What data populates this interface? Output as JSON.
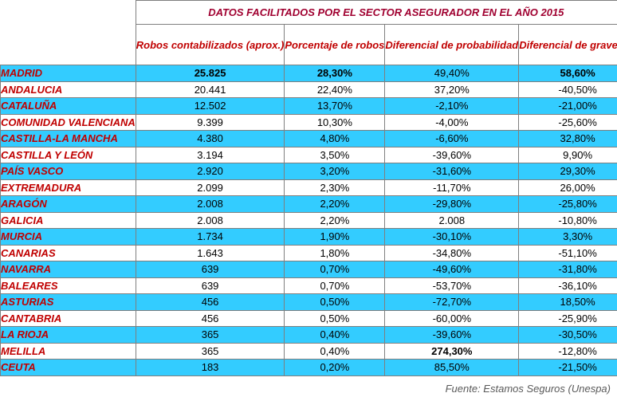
{
  "title": "DATOS FACILITADOS POR EL SECTOR ASEGURADOR EN EL AÑO 2015",
  "headers": {
    "robos": "Robos contabilizados (aprox.)",
    "porcentaje": "Porcentaje de robos",
    "probabilidad": "Diferencial de probabilidad",
    "gravedad": "Diferencial de gravedad"
  },
  "rows": [
    {
      "region": "MADRID",
      "robos": "25.825",
      "porcentaje": "28,30%",
      "probabilidad": "49,40%",
      "gravedad": "58,60%"
    },
    {
      "region": "ANDALUCIA",
      "robos": "20.441",
      "porcentaje": "22,40%",
      "probabilidad": "37,20%",
      "gravedad": "-40,50%"
    },
    {
      "region": "CATALUÑA",
      "robos": "12.502",
      "porcentaje": "13,70%",
      "probabilidad": "-2,10%",
      "gravedad": "-21,00%"
    },
    {
      "region": "COMUNIDAD VALENCIANA",
      "robos": "9.399",
      "porcentaje": "10,30%",
      "probabilidad": "-4,00%",
      "gravedad": "-25,60%"
    },
    {
      "region": "CASTILLA-LA MANCHA",
      "robos": "4.380",
      "porcentaje": "4,80%",
      "probabilidad": "-6,60%",
      "gravedad": "32,80%"
    },
    {
      "region": "CASTILLA Y LEÓN",
      "robos": "3.194",
      "porcentaje": "3,50%",
      "probabilidad": "-39,60%",
      "gravedad": "9,90%"
    },
    {
      "region": "PAÍS VASCO",
      "robos": "2.920",
      "porcentaje": "3,20%",
      "probabilidad": "-31,60%",
      "gravedad": "29,30%"
    },
    {
      "region": "EXTREMADURA",
      "robos": "2.099",
      "porcentaje": "2,30%",
      "probabilidad": "-11,70%",
      "gravedad": "26,00%"
    },
    {
      "region": "ARAGÓN",
      "robos": "2.008",
      "porcentaje": "2,20%",
      "probabilidad": "-29,80%",
      "gravedad": "-25,80%"
    },
    {
      "region": "GALICIA",
      "robos": "2.008",
      "porcentaje": "2,20%",
      "probabilidad": "2.008",
      "gravedad": "-10,80%"
    },
    {
      "region": "MURCIA",
      "robos": "1.734",
      "porcentaje": "1,90%",
      "probabilidad": "-30,10%",
      "gravedad": "3,30%"
    },
    {
      "region": "CANARIAS",
      "robos": "1.643",
      "porcentaje": "1,80%",
      "probabilidad": "-34,80%",
      "gravedad": "-51,10%"
    },
    {
      "region": "NAVARRA",
      "robos": "639",
      "porcentaje": "0,70%",
      "probabilidad": "-49,60%",
      "gravedad": "-31,80%"
    },
    {
      "region": "BALEARES",
      "robos": "639",
      "porcentaje": "0,70%",
      "probabilidad": "-53,70%",
      "gravedad": "-36,10%"
    },
    {
      "region": "ASTURIAS",
      "robos": "456",
      "porcentaje": "0,50%",
      "probabilidad": "-72,70%",
      "gravedad": "18,50%"
    },
    {
      "region": "CANTABRIA",
      "robos": "456",
      "porcentaje": "0,50%",
      "probabilidad": "-60,00%",
      "gravedad": "-25,90%"
    },
    {
      "region": "LA RIOJA",
      "robos": "365",
      "porcentaje": "0,40%",
      "probabilidad": "-39,60%",
      "gravedad": "-30,50%"
    },
    {
      "region": "MELILLA",
      "robos": "365",
      "porcentaje": "0,40%",
      "probabilidad": "274,30%",
      "gravedad": "-12,80%"
    },
    {
      "region": "CEUTA",
      "robos": "183",
      "porcentaje": "0,20%",
      "probabilidad": "85,50%",
      "gravedad": "-21,50%"
    }
  ],
  "source": "Fuente: Estamos Seguros (Unespa)",
  "colors": {
    "highlight": "#33ccff",
    "label_red": "#c00000",
    "title_red": "#a00030"
  }
}
